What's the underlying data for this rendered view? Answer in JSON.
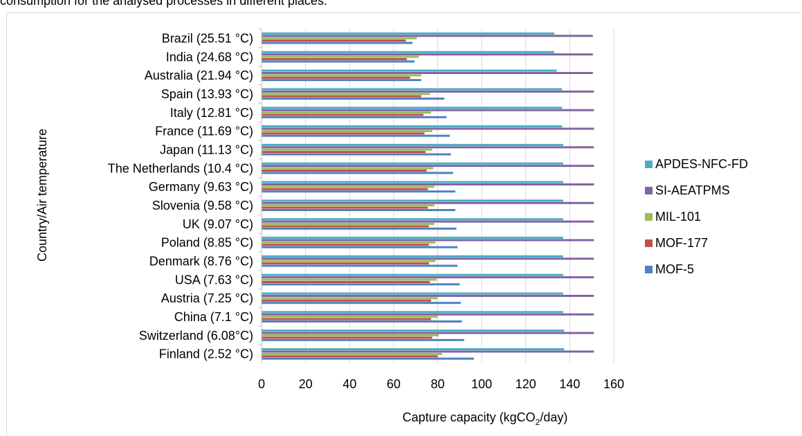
{
  "caption_fragment": "consumption for the analysed processes in different places.",
  "chart_data": {
    "type": "bar",
    "orientation": "horizontal",
    "title": "",
    "xlabel_prefix": "Capture capacity (kgCO",
    "xlabel_sub": "2",
    "xlabel_suffix": "/day)",
    "ylabel": "Country/Air temperature",
    "xlim": [
      0,
      160
    ],
    "xticks": [
      "0",
      "20",
      "40",
      "60",
      "80",
      "100",
      "120",
      "140",
      "160"
    ],
    "grid": "vertical",
    "legend_position": "right",
    "categories": [
      "Brazil (25.51 °C)",
      "India (24.68 °C)",
      "Australia (21.94 °C)",
      "Spain (13.93 °C)",
      "Italy (12.81 °C)",
      "France (11.69 °C)",
      "Japan (11.13 °C)",
      "The Netherlands (10.4 °C)",
      "Germany (9.63 °C)",
      "Slovenia (9.58 °C)",
      "UK (9.07 °C)",
      "Poland (8.85 °C)",
      "Denmark (8.76 °C)",
      "USA (7.63 °C)",
      "Austria (7.25 °C)",
      "China (7.1 °C)",
      "Switzerland (6.08°C)",
      "Finland (2.52 °C)"
    ],
    "series": [
      {
        "name": "APDES-NFC-FD",
        "color": "#4bacc6",
        "values": [
          133,
          133,
          134,
          136.5,
          136.5,
          136.5,
          137,
          137,
          137,
          137,
          137,
          137,
          137,
          137,
          137,
          137,
          137.5,
          137.5
        ]
      },
      {
        "name": "SI-AEATPMS",
        "color": "#8064a2",
        "values": [
          150.5,
          150.5,
          150.5,
          151,
          151,
          151,
          151,
          151,
          151,
          151,
          151,
          151,
          151,
          151,
          151,
          151,
          151,
          151
        ]
      },
      {
        "name": "MIL-101",
        "color": "#9bbb59",
        "values": [
          70.5,
          71.5,
          72.5,
          76.5,
          77,
          77.5,
          77.5,
          78,
          78.5,
          78.5,
          78.5,
          79,
          79,
          79.5,
          80,
          80,
          80.5,
          82
        ]
      },
      {
        "name": "MOF-177",
        "color": "#c0504d",
        "values": [
          65.5,
          66,
          67.5,
          72.5,
          73.5,
          74,
          74.5,
          75,
          75.5,
          75.5,
          76,
          76,
          76,
          76.5,
          77,
          77,
          77.5,
          80
        ]
      },
      {
        "name": "MOF-5",
        "color": "#4f81bd",
        "values": [
          68.5,
          69.5,
          72.5,
          83,
          84,
          85.5,
          86,
          87,
          88,
          88,
          88.5,
          89,
          89,
          90,
          90.5,
          91,
          92,
          96.5
        ]
      }
    ]
  }
}
